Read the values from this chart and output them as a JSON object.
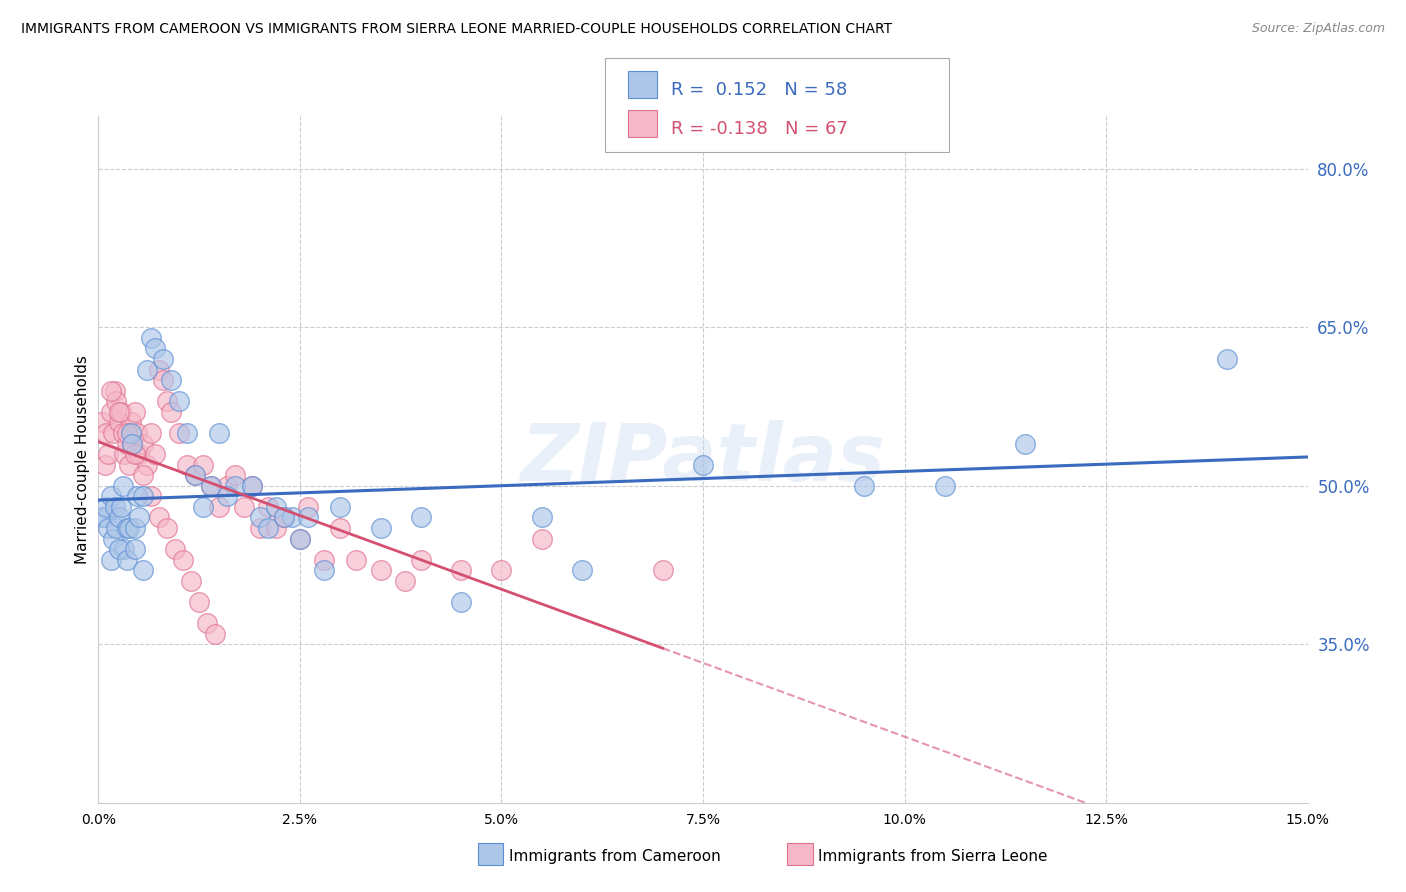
{
  "title": "IMMIGRANTS FROM CAMEROON VS IMMIGRANTS FROM SIERRA LEONE MARRIED-COUPLE HOUSEHOLDS CORRELATION CHART",
  "source": "Source: ZipAtlas.com",
  "ylabel_label": "Married-couple Households",
  "legend_bottom_left": "Immigrants from Cameroon",
  "legend_bottom_right": "Immigrants from Sierra Leone",
  "r_cameroon": 0.152,
  "n_cameroon": 58,
  "r_sierra": -0.138,
  "n_sierra": 67,
  "color_cameroon_fill": "#adc6e8",
  "color_cameroon_edge": "#5b8fd4",
  "color_sierra_fill": "#f5b8c8",
  "color_sierra_edge": "#e07090",
  "color_line_cameroon": "#3a6bbf",
  "color_line_sierra": "#d45070",
  "xlim": [
    0.0,
    15.0
  ],
  "ylim": [
    20.0,
    85.0
  ],
  "ytick_vals": [
    35.0,
    50.0,
    65.0,
    80.0
  ],
  "xtick_vals": [
    0.0,
    2.5,
    5.0,
    7.5,
    10.0,
    12.5,
    15.0
  ],
  "cam_x": [
    0.05,
    0.08,
    0.1,
    0.12,
    0.15,
    0.18,
    0.2,
    0.22,
    0.25,
    0.28,
    0.3,
    0.32,
    0.35,
    0.38,
    0.4,
    0.42,
    0.45,
    0.48,
    0.5,
    0.55,
    0.6,
    0.65,
    0.7,
    0.8,
    0.9,
    1.0,
    1.1,
    1.2,
    1.4,
    1.5,
    1.7,
    1.9,
    2.0,
    2.1,
    2.2,
    2.4,
    2.6,
    2.8,
    3.0,
    3.5,
    4.0,
    4.5,
    5.5,
    6.0,
    7.5,
    9.5,
    10.5,
    11.5,
    14.0,
    0.15,
    0.25,
    0.35,
    0.45,
    0.55,
    1.3,
    1.6,
    2.3,
    2.5
  ],
  "cam_y": [
    47,
    47,
    48,
    46,
    49,
    45,
    48,
    46,
    47,
    48,
    50,
    44,
    46,
    46,
    55,
    54,
    46,
    49,
    47,
    49,
    61,
    64,
    63,
    62,
    60,
    58,
    55,
    51,
    50,
    55,
    50,
    50,
    47,
    46,
    48,
    47,
    47,
    42,
    48,
    46,
    47,
    39,
    47,
    42,
    52,
    50,
    50,
    54,
    62,
    43,
    44,
    43,
    44,
    42,
    48,
    49,
    47,
    45
  ],
  "sie_x": [
    0.05,
    0.08,
    0.1,
    0.12,
    0.15,
    0.18,
    0.2,
    0.22,
    0.25,
    0.28,
    0.3,
    0.32,
    0.35,
    0.38,
    0.4,
    0.42,
    0.45,
    0.48,
    0.5,
    0.55,
    0.6,
    0.65,
    0.7,
    0.75,
    0.8,
    0.85,
    0.9,
    1.0,
    1.1,
    1.2,
    1.3,
    1.4,
    1.5,
    1.6,
    1.7,
    1.8,
    1.9,
    2.0,
    2.1,
    2.2,
    2.3,
    2.5,
    2.6,
    2.8,
    3.0,
    3.2,
    3.5,
    3.8,
    4.0,
    4.5,
    5.0,
    5.5,
    7.0,
    0.15,
    0.25,
    0.35,
    0.45,
    0.55,
    0.65,
    0.75,
    0.85,
    0.95,
    1.05,
    1.15,
    1.25,
    1.35,
    1.45
  ],
  "sie_y": [
    56,
    52,
    55,
    53,
    57,
    55,
    59,
    58,
    56,
    57,
    55,
    53,
    54,
    52,
    56,
    54,
    57,
    55,
    53,
    54,
    52,
    55,
    53,
    61,
    60,
    58,
    57,
    55,
    52,
    51,
    52,
    50,
    48,
    50,
    51,
    48,
    50,
    46,
    48,
    46,
    47,
    45,
    48,
    43,
    46,
    43,
    42,
    41,
    43,
    42,
    42,
    45,
    42,
    59,
    57,
    55,
    53,
    51,
    49,
    47,
    46,
    44,
    43,
    41,
    39,
    37,
    36
  ]
}
